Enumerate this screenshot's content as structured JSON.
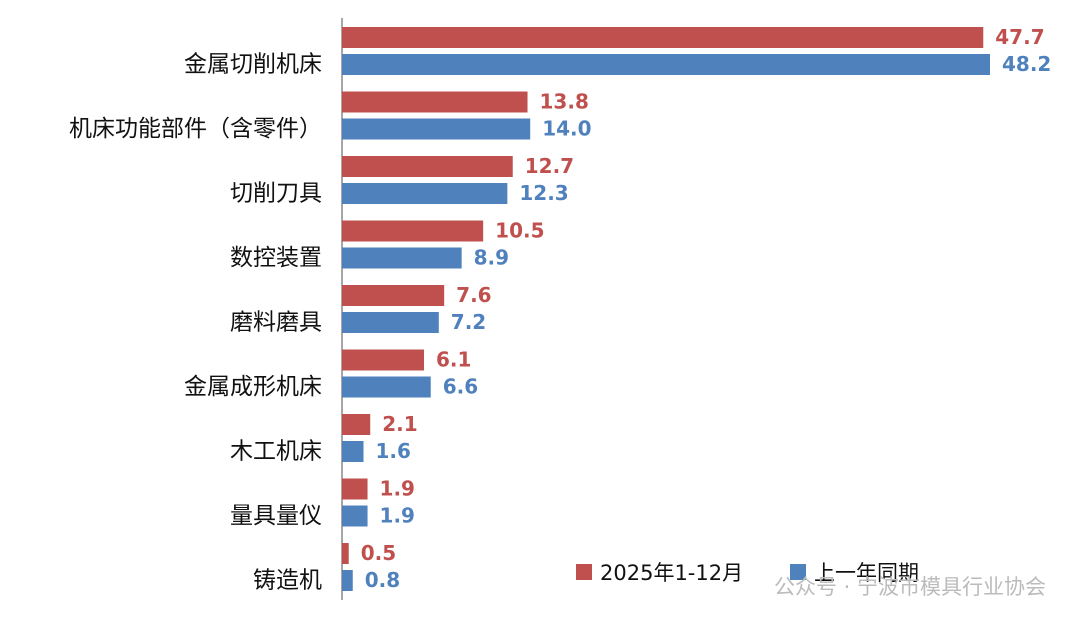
{
  "chart_data": {
    "type": "bar",
    "orientation": "horizontal",
    "categories": [
      "金属切削机床",
      "机床功能部件（含零件）",
      "切削刀具",
      "数控装置",
      "磨料磨具",
      "金属成形机床",
      "木工机床",
      "量具量仪",
      "铸造机"
    ],
    "series": [
      {
        "name": "2025年1-12月",
        "color": "#c0504d",
        "values": [
          47.7,
          13.8,
          12.7,
          10.5,
          7.6,
          6.1,
          2.1,
          1.9,
          0.5
        ]
      },
      {
        "name": "上一年同期",
        "color": "#4f81bd",
        "values": [
          48.2,
          14.0,
          12.3,
          8.9,
          7.2,
          6.6,
          1.6,
          1.9,
          0.8
        ],
        "value_labels": [
          "48.2",
          "14.0",
          "12.3",
          "8.9",
          "7.2",
          "6.6",
          "1.6",
          "1.9",
          "0.8"
        ]
      }
    ],
    "watermark": "公众号 · 宁波市模具行业协会"
  }
}
